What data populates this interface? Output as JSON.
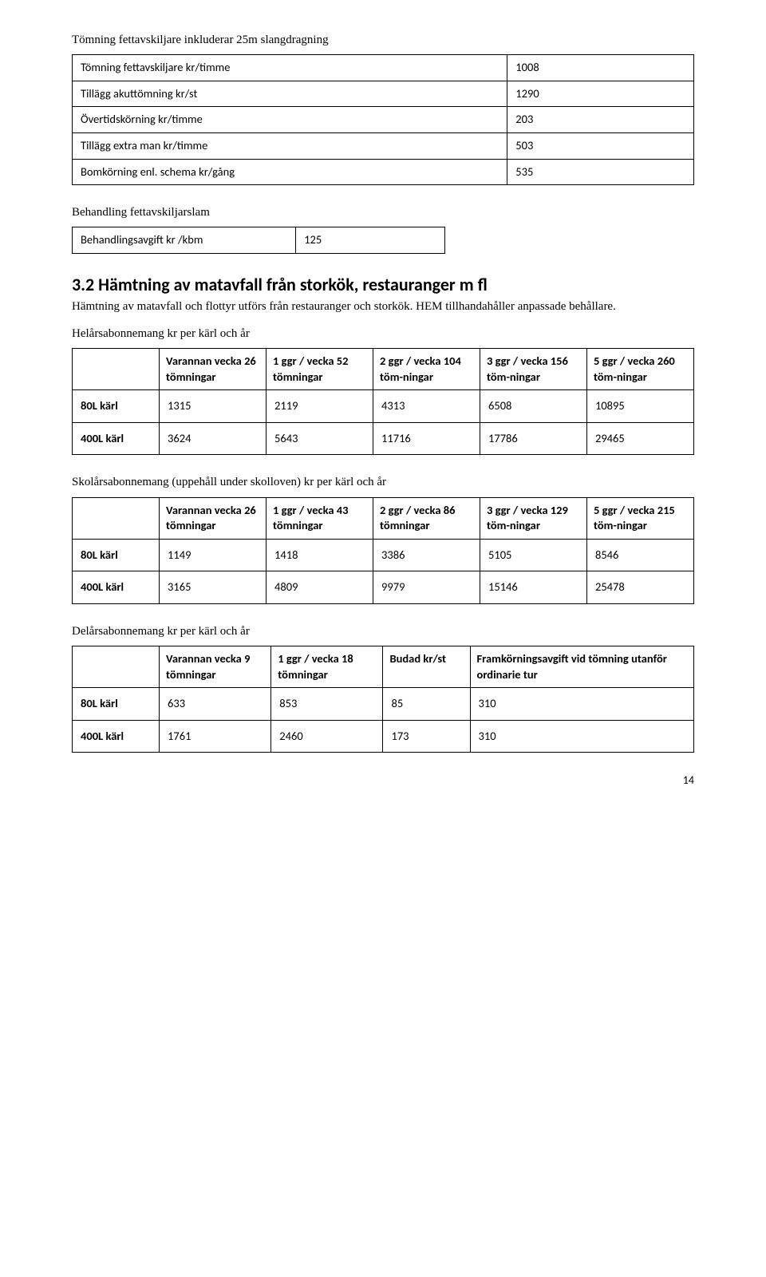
{
  "section1": {
    "title": "Tömning fettavskiljare inkluderar 25m slangdragning",
    "rows": [
      {
        "label": "Tömning fettavskiljare kr/timme",
        "value": "1008"
      },
      {
        "label": "Tillägg akuttömning kr/st",
        "value": "1290"
      },
      {
        "label": "Övertidskörning kr/timme",
        "value": "203"
      },
      {
        "label": "Tillägg extra man kr/timme",
        "value": "503"
      },
      {
        "label": "Bomkörning enl. schema kr/gång",
        "value": "535"
      }
    ]
  },
  "section2": {
    "title": "Behandling fettavskiljarslam",
    "rows": [
      {
        "label": "Behandlingsavgift kr /kbm",
        "value": "125"
      }
    ]
  },
  "heading": {
    "number": "3.2",
    "text": "Hämtning av matavfall från storkök, restauranger m fl"
  },
  "intro": "Hämtning av matavfall och flottyr utförs från restauranger och storkök. HEM tillhandahåller anpassade behållare.",
  "table_a": {
    "title": "Helårsabonnemang kr per kärl och år",
    "headers": [
      "",
      "Varannan vecka 26 tömningar",
      "1 ggr / vecka 52 tömningar",
      "2 ggr / vecka 104 töm-ningar",
      "3 ggr / vecka 156 töm-ningar",
      "5 ggr / vecka 260 töm-ningar"
    ],
    "rows": [
      {
        "label": "80L kärl",
        "v": [
          "1315",
          "2119",
          "4313",
          "6508",
          "10895"
        ]
      },
      {
        "label": "400L kärl",
        "v": [
          "3624",
          "5643",
          "11716",
          "17786",
          "29465"
        ]
      }
    ]
  },
  "table_b": {
    "title": "Skolårsabonnemang (uppehåll under skolloven) kr per kärl och år",
    "headers": [
      "",
      "Varannan vecka 26 tömningar",
      "1 ggr / vecka 43 tömningar",
      "2 ggr / vecka 86 tömningar",
      "3 ggr / vecka 129 töm-ningar",
      "5 ggr / vecka 215 töm-ningar"
    ],
    "rows": [
      {
        "label": "80L kärl",
        "v": [
          "1149",
          "1418",
          "3386",
          "5105",
          "8546"
        ]
      },
      {
        "label": "400L kärl",
        "v": [
          "3165",
          "4809",
          "9979",
          "15146",
          "25478"
        ]
      }
    ]
  },
  "table_c": {
    "title": "Delårsabonnemang kr per kärl och år",
    "headers": [
      "",
      "Varannan vecka 9 tömningar",
      "1 ggr / vecka 18 tömningar",
      "Budad kr/st",
      "Framkörningsavgift vid tömning utanför ordinarie tur"
    ],
    "rows": [
      {
        "label": "80L kärl",
        "v": [
          "633",
          "853",
          "85",
          "310"
        ]
      },
      {
        "label": "400L kärl",
        "v": [
          "1761",
          "2460",
          "173",
          "310"
        ]
      }
    ]
  },
  "page_number": "14",
  "colors": {
    "text": "#000000",
    "border": "#000000",
    "background": "#ffffff"
  }
}
